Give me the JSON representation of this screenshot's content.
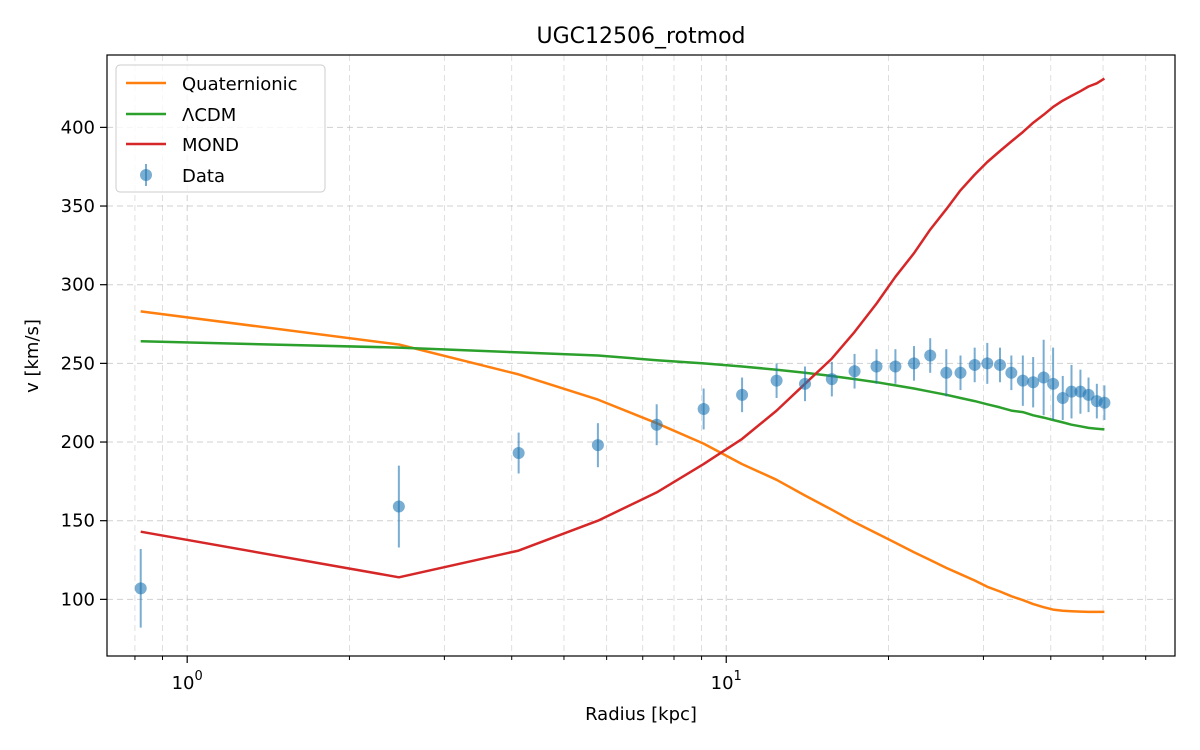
{
  "chart_data": {
    "type": "line",
    "title": "UGC12506_rotmod",
    "xlabel": "Radius [kpc]",
    "ylabel": "v [km/s]",
    "xscale": "log",
    "xlim": [
      0.71,
      68
    ],
    "ylim": [
      64,
      446
    ],
    "grid": true,
    "legend_position": "top-left",
    "x_ticks": [
      {
        "value": 1,
        "label": "10",
        "exp": "0"
      },
      {
        "value": 10,
        "label": "10",
        "exp": "1"
      }
    ],
    "y_ticks": [
      100,
      150,
      200,
      250,
      300,
      350,
      400
    ],
    "series": [
      {
        "name": "Quaternionic",
        "color": "#ff7f0e",
        "x": [
          0.82,
          2.47,
          4.12,
          5.78,
          7.43,
          9.08,
          10.7,
          12.4,
          14.0,
          15.7,
          17.3,
          19.0,
          20.6,
          22.3,
          23.9,
          25.6,
          27.2,
          28.9,
          30.5,
          32.2,
          33.8,
          35.5,
          37.1,
          38.8,
          40.4,
          42.1,
          43.7,
          45.4,
          47.0,
          48.7,
          50.3
        ],
        "y": [
          283,
          262,
          243,
          227,
          212,
          199,
          186,
          176,
          166,
          157,
          149,
          142,
          136,
          130,
          125,
          120,
          116,
          112,
          108,
          105,
          102,
          99.5,
          97,
          95,
          93.5,
          92.8,
          92.5,
          92.2,
          92.0,
          92.0,
          92.0
        ]
      },
      {
        "name": "ΛCDM",
        "color": "#2ca02c",
        "x": [
          0.82,
          2.47,
          4.12,
          5.78,
          7.43,
          9.08,
          10.7,
          12.4,
          14.0,
          15.7,
          17.3,
          19.0,
          20.6,
          22.3,
          23.9,
          25.6,
          27.2,
          28.9,
          30.5,
          32.2,
          33.8,
          35.5,
          37.1,
          38.8,
          40.4,
          42.1,
          43.7,
          45.4,
          47.0,
          48.7,
          50.3
        ],
        "y": [
          264,
          260,
          257,
          255,
          252,
          250,
          248,
          246,
          244,
          242,
          240,
          238,
          236,
          234,
          232,
          230,
          228,
          226,
          224,
          222,
          220,
          219,
          217,
          215.5,
          214,
          212.5,
          211,
          210,
          209,
          208.5,
          208
        ]
      },
      {
        "name": "MOND",
        "color": "#d62728",
        "x": [
          0.82,
          2.47,
          4.12,
          5.78,
          7.43,
          9.08,
          10.7,
          12.4,
          14.0,
          15.7,
          17.3,
          19.0,
          20.6,
          22.3,
          23.9,
          25.6,
          27.2,
          28.9,
          30.5,
          32.2,
          33.8,
          35.5,
          37.1,
          38.8,
          40.4,
          42.1,
          43.7,
          45.4,
          47.0,
          48.7,
          50.3
        ],
        "y": [
          143,
          114,
          131,
          150,
          168,
          186,
          202,
          220,
          237,
          253,
          270,
          288,
          305,
          320,
          335,
          348,
          360,
          370,
          378,
          385,
          391,
          397,
          403,
          408,
          413,
          417,
          420,
          423,
          426,
          428,
          431
        ]
      }
    ],
    "data_points": {
      "name": "Data",
      "color": "#1f77b4",
      "x": [
        0.82,
        2.47,
        4.12,
        5.78,
        7.43,
        9.08,
        10.7,
        12.4,
        14.0,
        15.7,
        17.3,
        19.0,
        20.6,
        22.3,
        23.9,
        25.6,
        27.2,
        28.9,
        30.5,
        32.2,
        33.8,
        35.5,
        37.1,
        38.8,
        40.4,
        42.1,
        43.7,
        45.4,
        47.0,
        48.7,
        50.3
      ],
      "y": [
        107,
        159,
        193,
        198,
        211,
        221,
        230,
        239,
        237,
        240,
        245,
        248,
        248,
        250,
        255,
        244,
        244,
        249,
        250,
        249,
        244,
        239,
        238,
        241,
        237,
        228,
        232,
        232,
        230,
        226,
        225
      ],
      "err": [
        25,
        26,
        13,
        14,
        13,
        13,
        11,
        11,
        11,
        11,
        11,
        11,
        11,
        11,
        11,
        15,
        11,
        11,
        13,
        11,
        11,
        16,
        16,
        24,
        23,
        14,
        17,
        14,
        11,
        11,
        11
      ]
    }
  }
}
